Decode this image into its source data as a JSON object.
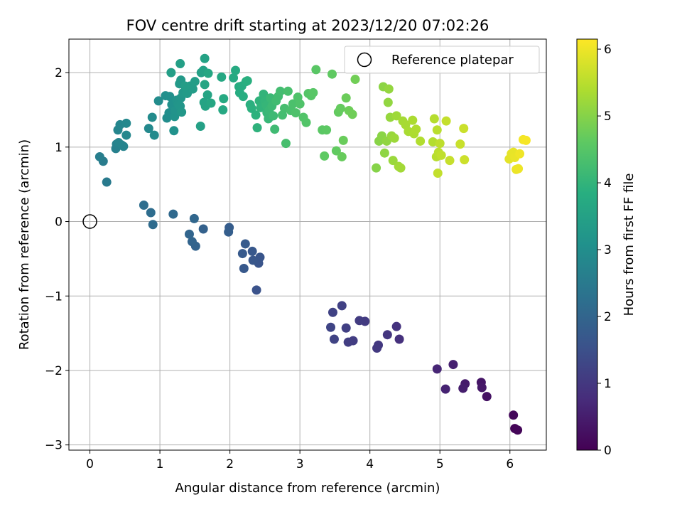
{
  "chart_data": {
    "type": "scatter",
    "title": "FOV centre drift starting at 2023/12/20 07:02:26",
    "xlabel": "Angular distance from reference (arcmin)",
    "ylabel": "Rotation from reference (arcmin)",
    "xlim": [
      -0.3,
      6.52
    ],
    "ylim": [
      -3.07,
      2.45
    ],
    "xticks": [
      0,
      1,
      2,
      3,
      4,
      5,
      6
    ],
    "yticks": [
      -3,
      -2,
      -1,
      0,
      1,
      2
    ],
    "xtick_labels": [
      "0",
      "1",
      "2",
      "3",
      "4",
      "5",
      "6"
    ],
    "ytick_labels": [
      "−3",
      "−2",
      "−1",
      "0",
      "1",
      "2"
    ],
    "grid": true,
    "legend": {
      "location": "top-right",
      "entries": [
        "Reference platepar"
      ]
    },
    "reference_point": {
      "x": 0,
      "y": 0
    },
    "colorbar": {
      "label": "Hours from first FF file",
      "colormap": "viridis",
      "range": [
        0,
        6.15
      ],
      "ticks": [
        0,
        1,
        2,
        3,
        4,
        5,
        6
      ],
      "tick_labels": [
        "0",
        "1",
        "2",
        "3",
        "4",
        "5",
        "6"
      ]
    },
    "points": [
      {
        "x": 6.07,
        "y": -2.78,
        "hours": 0.05
      },
      {
        "x": 6.11,
        "y": -2.8,
        "hours": 0.08
      },
      {
        "x": 6.05,
        "y": -2.6,
        "hours": 0.12
      },
      {
        "x": 5.67,
        "y": -2.35,
        "hours": 0.3
      },
      {
        "x": 5.59,
        "y": -2.16,
        "hours": 0.35
      },
      {
        "x": 5.6,
        "y": -2.23,
        "hours": 0.4
      },
      {
        "x": 5.36,
        "y": -2.18,
        "hours": 0.45
      },
      {
        "x": 5.33,
        "y": -2.24,
        "hours": 0.5
      },
      {
        "x": 5.19,
        "y": -1.92,
        "hours": 0.55
      },
      {
        "x": 5.08,
        "y": -2.25,
        "hours": 0.6
      },
      {
        "x": 4.96,
        "y": -1.98,
        "hours": 0.65
      },
      {
        "x": 4.42,
        "y": -1.58,
        "hours": 0.85
      },
      {
        "x": 4.38,
        "y": -1.41,
        "hours": 0.9
      },
      {
        "x": 4.25,
        "y": -1.52,
        "hours": 0.95
      },
      {
        "x": 4.12,
        "y": -1.66,
        "hours": 1.0
      },
      {
        "x": 4.1,
        "y": -1.7,
        "hours": 1.02
      },
      {
        "x": 3.93,
        "y": -1.34,
        "hours": 1.05
      },
      {
        "x": 3.85,
        "y": -1.33,
        "hours": 1.08
      },
      {
        "x": 3.76,
        "y": -1.6,
        "hours": 1.1
      },
      {
        "x": 3.69,
        "y": -1.62,
        "hours": 1.12
      },
      {
        "x": 3.66,
        "y": -1.43,
        "hours": 1.15
      },
      {
        "x": 3.6,
        "y": -1.13,
        "hours": 1.18
      },
      {
        "x": 3.47,
        "y": -1.22,
        "hours": 1.2
      },
      {
        "x": 3.49,
        "y": -1.58,
        "hours": 1.22
      },
      {
        "x": 3.44,
        "y": -1.42,
        "hours": 1.25
      },
      {
        "x": 2.38,
        "y": -0.92,
        "hours": 1.55
      },
      {
        "x": 2.41,
        "y": -0.56,
        "hours": 1.6
      },
      {
        "x": 2.43,
        "y": -0.48,
        "hours": 1.62
      },
      {
        "x": 2.33,
        "y": -0.52,
        "hours": 1.65
      },
      {
        "x": 2.32,
        "y": -0.4,
        "hours": 1.68
      },
      {
        "x": 2.2,
        "y": -0.63,
        "hours": 1.7
      },
      {
        "x": 2.18,
        "y": -0.43,
        "hours": 1.72
      },
      {
        "x": 2.22,
        "y": -0.3,
        "hours": 1.75
      },
      {
        "x": 1.99,
        "y": -0.08,
        "hours": 1.8
      },
      {
        "x": 1.98,
        "y": -0.14,
        "hours": 1.82
      },
      {
        "x": 1.62,
        "y": -0.1,
        "hours": 1.9
      },
      {
        "x": 1.51,
        "y": -0.33,
        "hours": 1.95
      },
      {
        "x": 1.46,
        "y": -0.27,
        "hours": 1.98
      },
      {
        "x": 1.42,
        "y": -0.17,
        "hours": 2.0
      },
      {
        "x": 1.49,
        "y": 0.04,
        "hours": 2.05
      },
      {
        "x": 1.19,
        "y": 0.1,
        "hours": 2.1
      },
      {
        "x": 0.9,
        "y": -0.04,
        "hours": 2.15
      },
      {
        "x": 0.87,
        "y": 0.12,
        "hours": 2.18
      },
      {
        "x": 0.77,
        "y": 0.22,
        "hours": 2.2
      },
      {
        "x": 0.24,
        "y": 0.53,
        "hours": 2.5
      },
      {
        "x": 0.19,
        "y": 0.81,
        "hours": 2.55
      },
      {
        "x": 0.14,
        "y": 0.87,
        "hours": 2.6
      },
      {
        "x": 0.37,
        "y": 0.98,
        "hours": 2.65
      },
      {
        "x": 0.38,
        "y": 1.04,
        "hours": 2.68
      },
      {
        "x": 0.45,
        "y": 1.03,
        "hours": 2.7
      },
      {
        "x": 0.48,
        "y": 1.01,
        "hours": 2.72
      },
      {
        "x": 0.41,
        "y": 1.06,
        "hours": 2.75
      },
      {
        "x": 0.4,
        "y": 1.23,
        "hours": 2.78
      },
      {
        "x": 0.43,
        "y": 1.3,
        "hours": 2.8
      },
      {
        "x": 0.52,
        "y": 1.16,
        "hours": 2.82
      },
      {
        "x": 0.52,
        "y": 1.32,
        "hours": 2.85
      },
      {
        "x": 0.84,
        "y": 1.25,
        "hours": 2.88
      },
      {
        "x": 0.92,
        "y": 1.16,
        "hours": 2.9
      },
      {
        "x": 0.89,
        "y": 1.4,
        "hours": 2.92
      },
      {
        "x": 0.98,
        "y": 1.62,
        "hours": 2.95
      },
      {
        "x": 1.1,
        "y": 1.39,
        "hours": 2.98
      },
      {
        "x": 1.13,
        "y": 1.46,
        "hours": 3.0
      },
      {
        "x": 1.08,
        "y": 1.69,
        "hours": 3.02
      },
      {
        "x": 1.14,
        "y": 1.68,
        "hours": 3.05
      },
      {
        "x": 1.17,
        "y": 1.57,
        "hours": 3.08
      },
      {
        "x": 1.2,
        "y": 1.22,
        "hours": 3.1
      },
      {
        "x": 1.21,
        "y": 1.41,
        "hours": 3.12
      },
      {
        "x": 1.22,
        "y": 1.49,
        "hours": 3.14
      },
      {
        "x": 1.24,
        "y": 1.63,
        "hours": 3.16
      },
      {
        "x": 1.26,
        "y": 1.58,
        "hours": 3.18
      },
      {
        "x": 1.29,
        "y": 1.55,
        "hours": 3.2
      },
      {
        "x": 1.3,
        "y": 1.66,
        "hours": 3.22
      },
      {
        "x": 1.31,
        "y": 1.47,
        "hours": 3.24
      },
      {
        "x": 1.33,
        "y": 1.73,
        "hours": 3.26
      },
      {
        "x": 1.28,
        "y": 1.85,
        "hours": 3.28
      },
      {
        "x": 1.3,
        "y": 1.9,
        "hours": 3.3
      },
      {
        "x": 1.39,
        "y": 1.72,
        "hours": 3.32
      },
      {
        "x": 1.43,
        "y": 1.82,
        "hours": 3.34
      },
      {
        "x": 1.47,
        "y": 1.78,
        "hours": 3.36
      },
      {
        "x": 1.36,
        "y": 1.82,
        "hours": 3.38
      },
      {
        "x": 1.5,
        "y": 1.88,
        "hours": 3.4
      },
      {
        "x": 1.16,
        "y": 2.0,
        "hours": 3.42
      },
      {
        "x": 1.29,
        "y": 2.12,
        "hours": 3.44
      },
      {
        "x": 1.58,
        "y": 1.28,
        "hours": 3.46
      },
      {
        "x": 1.59,
        "y": 2.0,
        "hours": 3.48
      },
      {
        "x": 1.62,
        "y": 2.03,
        "hours": 3.5
      },
      {
        "x": 1.64,
        "y": 2.19,
        "hours": 3.52
      },
      {
        "x": 1.63,
        "y": 1.6,
        "hours": 3.54
      },
      {
        "x": 1.65,
        "y": 1.55,
        "hours": 3.56
      },
      {
        "x": 1.68,
        "y": 1.7,
        "hours": 3.58
      },
      {
        "x": 1.64,
        "y": 1.84,
        "hours": 3.6
      },
      {
        "x": 1.69,
        "y": 1.99,
        "hours": 3.62
      },
      {
        "x": 1.73,
        "y": 1.59,
        "hours": 3.64
      },
      {
        "x": 1.88,
        "y": 1.94,
        "hours": 3.66
      },
      {
        "x": 1.9,
        "y": 1.5,
        "hours": 3.68
      },
      {
        "x": 1.91,
        "y": 1.65,
        "hours": 3.7
      },
      {
        "x": 2.05,
        "y": 1.93,
        "hours": 3.72
      },
      {
        "x": 2.08,
        "y": 2.03,
        "hours": 3.74
      },
      {
        "x": 2.13,
        "y": 1.81,
        "hours": 3.76
      },
      {
        "x": 2.14,
        "y": 1.73,
        "hours": 3.78
      },
      {
        "x": 2.17,
        "y": 1.82,
        "hours": 3.8
      },
      {
        "x": 2.19,
        "y": 1.68,
        "hours": 3.82
      },
      {
        "x": 2.23,
        "y": 1.88,
        "hours": 3.84
      },
      {
        "x": 2.25,
        "y": 1.89,
        "hours": 3.86
      },
      {
        "x": 2.29,
        "y": 1.57,
        "hours": 3.88
      },
      {
        "x": 2.31,
        "y": 1.52,
        "hours": 3.9
      },
      {
        "x": 2.37,
        "y": 1.43,
        "hours": 3.92
      },
      {
        "x": 2.39,
        "y": 1.26,
        "hours": 3.94
      },
      {
        "x": 2.42,
        "y": 1.62,
        "hours": 3.96
      },
      {
        "x": 2.44,
        "y": 1.53,
        "hours": 3.98
      },
      {
        "x": 2.48,
        "y": 1.71,
        "hours": 4.0
      },
      {
        "x": 2.5,
        "y": 1.61,
        "hours": 4.02
      },
      {
        "x": 2.52,
        "y": 1.56,
        "hours": 4.04
      },
      {
        "x": 2.53,
        "y": 1.46,
        "hours": 4.06
      },
      {
        "x": 2.55,
        "y": 1.38,
        "hours": 4.08
      },
      {
        "x": 2.56,
        "y": 1.49,
        "hours": 4.1
      },
      {
        "x": 2.58,
        "y": 1.66,
        "hours": 4.12
      },
      {
        "x": 2.6,
        "y": 1.55,
        "hours": 4.14
      },
      {
        "x": 2.62,
        "y": 1.42,
        "hours": 4.16
      },
      {
        "x": 2.64,
        "y": 1.24,
        "hours": 4.18
      },
      {
        "x": 2.66,
        "y": 1.62,
        "hours": 4.2
      },
      {
        "x": 2.69,
        "y": 1.68,
        "hours": 4.22
      },
      {
        "x": 2.72,
        "y": 1.75,
        "hours": 4.24
      },
      {
        "x": 2.75,
        "y": 1.43,
        "hours": 4.26
      },
      {
        "x": 2.78,
        "y": 1.52,
        "hours": 4.28
      },
      {
        "x": 2.8,
        "y": 1.05,
        "hours": 4.3
      },
      {
        "x": 2.83,
        "y": 1.75,
        "hours": 4.32
      },
      {
        "x": 2.87,
        "y": 1.49,
        "hours": 4.34
      },
      {
        "x": 2.9,
        "y": 1.58,
        "hours": 4.36
      },
      {
        "x": 2.94,
        "y": 1.46,
        "hours": 4.38
      },
      {
        "x": 2.97,
        "y": 1.67,
        "hours": 4.4
      },
      {
        "x": 3.0,
        "y": 1.58,
        "hours": 4.42
      },
      {
        "x": 3.05,
        "y": 1.4,
        "hours": 4.44
      },
      {
        "x": 3.09,
        "y": 1.33,
        "hours": 4.46
      },
      {
        "x": 3.12,
        "y": 1.72,
        "hours": 4.48
      },
      {
        "x": 3.16,
        "y": 1.69,
        "hours": 4.5
      },
      {
        "x": 3.19,
        "y": 1.73,
        "hours": 4.52
      },
      {
        "x": 3.23,
        "y": 2.04,
        "hours": 4.54
      },
      {
        "x": 3.32,
        "y": 1.23,
        "hours": 4.56
      },
      {
        "x": 3.38,
        "y": 1.23,
        "hours": 4.58
      },
      {
        "x": 3.35,
        "y": 0.88,
        "hours": 4.6
      },
      {
        "x": 3.46,
        "y": 1.98,
        "hours": 4.62
      },
      {
        "x": 3.52,
        "y": 0.95,
        "hours": 4.64
      },
      {
        "x": 3.55,
        "y": 1.47,
        "hours": 4.66
      },
      {
        "x": 3.58,
        "y": 1.52,
        "hours": 4.68
      },
      {
        "x": 3.6,
        "y": 0.87,
        "hours": 4.7
      },
      {
        "x": 3.62,
        "y": 1.09,
        "hours": 4.72
      },
      {
        "x": 3.66,
        "y": 1.66,
        "hours": 4.74
      },
      {
        "x": 3.7,
        "y": 1.49,
        "hours": 4.76
      },
      {
        "x": 3.75,
        "y": 1.44,
        "hours": 4.78
      },
      {
        "x": 3.79,
        "y": 1.91,
        "hours": 4.8
      },
      {
        "x": 4.09,
        "y": 0.72,
        "hours": 5.0
      },
      {
        "x": 4.13,
        "y": 1.08,
        "hours": 5.02
      },
      {
        "x": 4.17,
        "y": 1.15,
        "hours": 5.04
      },
      {
        "x": 4.19,
        "y": 1.81,
        "hours": 5.06
      },
      {
        "x": 4.21,
        "y": 0.92,
        "hours": 5.08
      },
      {
        "x": 4.24,
        "y": 1.08,
        "hours": 5.1
      },
      {
        "x": 4.26,
        "y": 1.6,
        "hours": 5.12
      },
      {
        "x": 4.27,
        "y": 1.78,
        "hours": 5.14
      },
      {
        "x": 4.29,
        "y": 1.4,
        "hours": 5.16
      },
      {
        "x": 4.31,
        "y": 1.15,
        "hours": 5.18
      },
      {
        "x": 4.33,
        "y": 0.82,
        "hours": 5.2
      },
      {
        "x": 4.35,
        "y": 1.12,
        "hours": 5.22
      },
      {
        "x": 4.38,
        "y": 1.42,
        "hours": 5.24
      },
      {
        "x": 4.41,
        "y": 0.74,
        "hours": 5.26
      },
      {
        "x": 4.44,
        "y": 0.72,
        "hours": 5.28
      },
      {
        "x": 4.47,
        "y": 1.35,
        "hours": 5.3
      },
      {
        "x": 4.51,
        "y": 1.3,
        "hours": 5.32
      },
      {
        "x": 4.55,
        "y": 1.21,
        "hours": 5.34
      },
      {
        "x": 4.61,
        "y": 1.36,
        "hours": 5.36
      },
      {
        "x": 4.63,
        "y": 1.18,
        "hours": 5.38
      },
      {
        "x": 4.66,
        "y": 1.24,
        "hours": 5.4
      },
      {
        "x": 4.72,
        "y": 1.08,
        "hours": 5.42
      },
      {
        "x": 4.9,
        "y": 1.07,
        "hours": 5.44
      },
      {
        "x": 4.92,
        "y": 1.38,
        "hours": 5.46
      },
      {
        "x": 4.95,
        "y": 0.87,
        "hours": 5.48
      },
      {
        "x": 4.96,
        "y": 1.23,
        "hours": 5.5
      },
      {
        "x": 4.98,
        "y": 0.93,
        "hours": 5.52
      },
      {
        "x": 5.0,
        "y": 1.05,
        "hours": 5.54
      },
      {
        "x": 5.02,
        "y": 0.89,
        "hours": 5.56
      },
      {
        "x": 4.97,
        "y": 0.65,
        "hours": 5.58
      },
      {
        "x": 5.09,
        "y": 1.35,
        "hours": 5.6
      },
      {
        "x": 5.14,
        "y": 0.82,
        "hours": 5.62
      },
      {
        "x": 5.29,
        "y": 1.04,
        "hours": 5.64
      },
      {
        "x": 5.34,
        "y": 1.25,
        "hours": 5.66
      },
      {
        "x": 5.35,
        "y": 0.83,
        "hours": 5.68
      },
      {
        "x": 5.99,
        "y": 0.84,
        "hours": 5.9
      },
      {
        "x": 6.02,
        "y": 0.91,
        "hours": 5.92
      },
      {
        "x": 6.05,
        "y": 0.93,
        "hours": 5.94
      },
      {
        "x": 6.07,
        "y": 0.86,
        "hours": 5.96
      },
      {
        "x": 6.09,
        "y": 0.7,
        "hours": 5.98
      },
      {
        "x": 6.12,
        "y": 0.71,
        "hours": 6.0
      },
      {
        "x": 6.14,
        "y": 0.91,
        "hours": 6.02
      },
      {
        "x": 6.19,
        "y": 1.1,
        "hours": 6.05
      },
      {
        "x": 6.23,
        "y": 1.09,
        "hours": 6.08
      }
    ]
  }
}
